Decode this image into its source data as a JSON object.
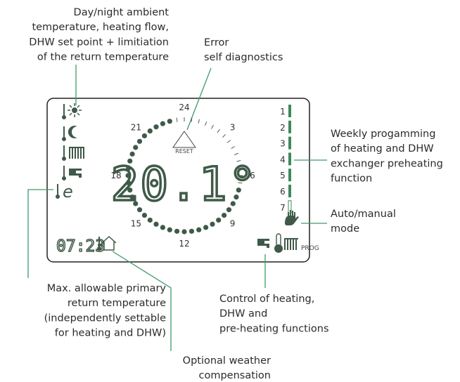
{
  "callouts": {
    "ambient": [
      "Day/night ambient",
      "temperature, heating flow,",
      "DHW set point + limitiation",
      "of the return temperature"
    ],
    "error": [
      "Error",
      "self diagnostics"
    ],
    "weekly": [
      "Weekly progamming",
      "of heating and DHW",
      "exchanger preheating",
      "function"
    ],
    "auto": [
      "Auto/manual",
      "mode"
    ],
    "return": [
      "Max. allowable primary",
      "return temperature",
      "(independently settable",
      "for heating and DHW)"
    ],
    "control": [
      "Control of heating,",
      "DHW and",
      "pre-heating functions"
    ],
    "weather": [
      "Optional weather",
      "compensation"
    ]
  },
  "display": {
    "temperature": "20.1°",
    "clock": "07:23",
    "reset": "RESET",
    "prog": "PROG",
    "return_icon": "e",
    "hours": [
      "24",
      "3",
      "6",
      "9",
      "12",
      "15",
      "18",
      "21"
    ],
    "days": [
      "1",
      "2",
      "3",
      "4",
      "5",
      "6",
      "7"
    ]
  }
}
